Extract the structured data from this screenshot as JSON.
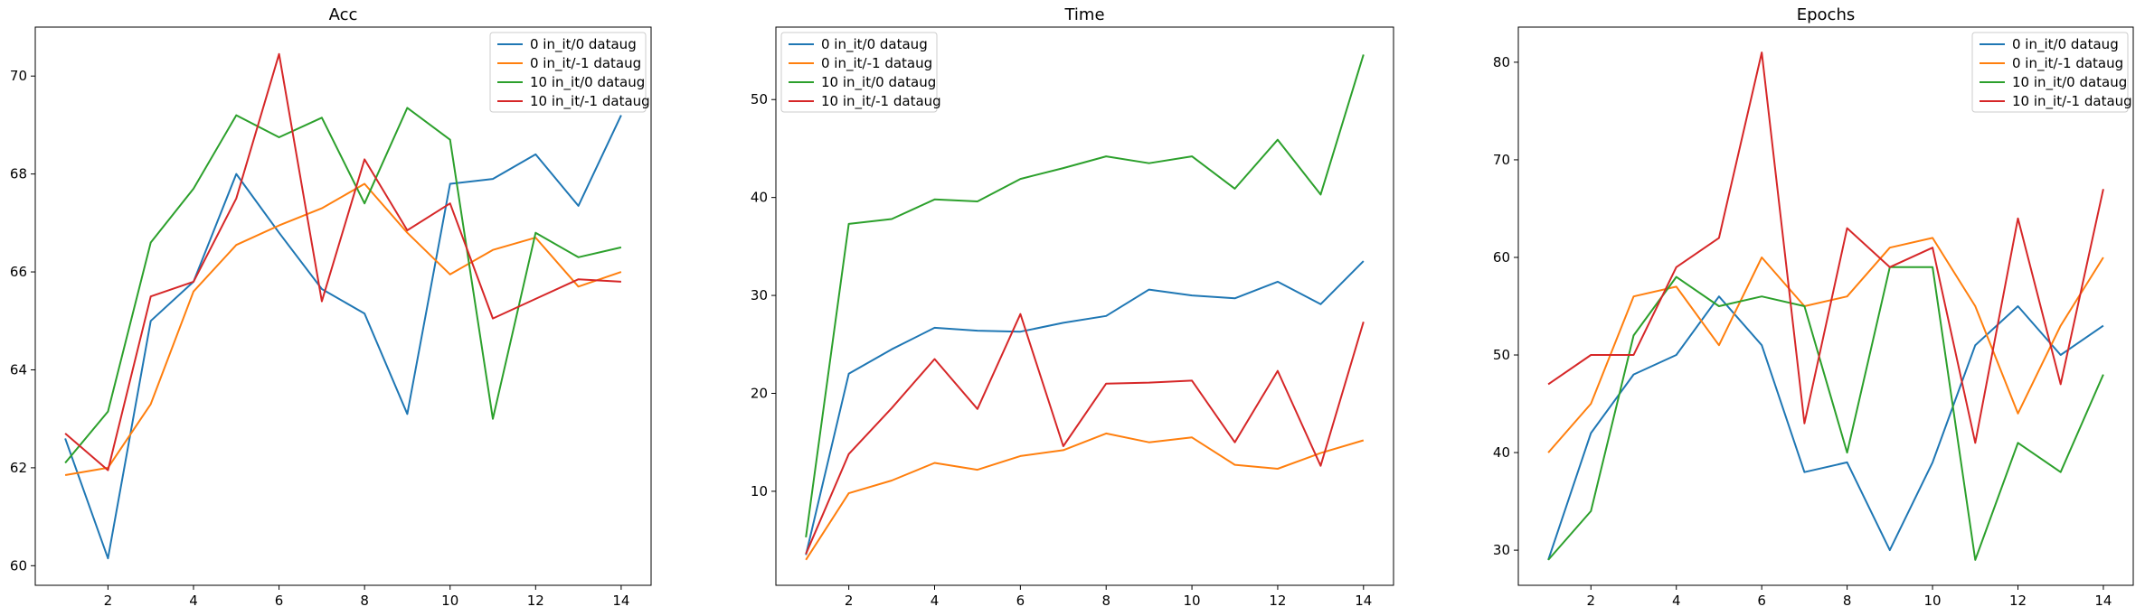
{
  "figure": {
    "title": ""
  },
  "chart_data": [
    {
      "type": "line",
      "title": "Acc",
      "xlabel": "",
      "ylabel": "",
      "xlim": [
        0.3,
        14.7
      ],
      "ylim": [
        59.6,
        71.0
      ],
      "xticks": [
        2,
        4,
        6,
        8,
        10,
        12,
        14
      ],
      "yticks": [
        60,
        62,
        64,
        66,
        68,
        70
      ],
      "legend_position": "top-right",
      "x": [
        1,
        2,
        3,
        4,
        5,
        6,
        7,
        8,
        9,
        10,
        11,
        12,
        13,
        14
      ],
      "series": [
        {
          "name": "0 in_it/0 dataug",
          "color": "#1f77b4",
          "values": [
            62.6,
            60.15,
            65.0,
            65.8,
            68.0,
            66.8,
            65.65,
            65.15,
            63.1,
            67.8,
            67.9,
            68.4,
            67.35,
            69.2
          ]
        },
        {
          "name": "0 in_it/-1 dataug",
          "color": "#ff7f0e",
          "values": [
            61.85,
            62.0,
            63.3,
            65.6,
            66.55,
            66.95,
            67.3,
            67.8,
            66.8,
            65.95,
            66.45,
            66.7,
            65.7,
            66.0
          ]
        },
        {
          "name": "10 in_it/0 dataug",
          "color": "#2ca02c",
          "values": [
            62.1,
            63.15,
            66.6,
            67.7,
            69.2,
            68.75,
            69.15,
            67.4,
            69.35,
            68.7,
            63.0,
            66.8,
            66.3,
            66.5
          ]
        },
        {
          "name": "10 in_it/-1 dataug",
          "color": "#d62728",
          "values": [
            62.7,
            61.95,
            65.5,
            65.8,
            67.5,
            70.45,
            65.4,
            68.3,
            66.85,
            67.4,
            65.05,
            65.45,
            65.85,
            65.8
          ]
        }
      ]
    },
    {
      "type": "line",
      "title": "Time",
      "xlabel": "",
      "ylabel": "",
      "xlim": [
        0.3,
        14.7
      ],
      "ylim": [
        0.4,
        57.4
      ],
      "xticks": [
        2,
        4,
        6,
        8,
        10,
        12,
        14
      ],
      "yticks": [
        10,
        20,
        30,
        40,
        50
      ],
      "legend_position": "top-left",
      "x": [
        1,
        2,
        3,
        4,
        5,
        6,
        7,
        8,
        9,
        10,
        11,
        12,
        13,
        14
      ],
      "series": [
        {
          "name": "0 in_it/0 dataug",
          "color": "#1f77b4",
          "values": [
            3.5,
            22.0,
            24.5,
            26.7,
            26.4,
            26.3,
            27.2,
            27.9,
            30.6,
            30.0,
            29.7,
            31.4,
            29.1,
            33.5
          ]
        },
        {
          "name": "0 in_it/-1 dataug",
          "color": "#ff7f0e",
          "values": [
            3.0,
            9.8,
            11.1,
            12.9,
            12.2,
            13.6,
            14.2,
            15.9,
            15.0,
            15.5,
            12.7,
            12.3,
            13.9,
            15.2
          ]
        },
        {
          "name": "10 in_it/0 dataug",
          "color": "#2ca02c",
          "values": [
            5.3,
            37.3,
            37.8,
            39.8,
            39.6,
            41.9,
            43.0,
            44.2,
            43.5,
            44.2,
            40.9,
            45.9,
            40.3,
            54.6
          ]
        },
        {
          "name": "10 in_it/-1 dataug",
          "color": "#d62728",
          "values": [
            3.6,
            13.8,
            18.5,
            23.5,
            18.4,
            28.1,
            14.6,
            21.0,
            21.1,
            21.3,
            15.0,
            22.3,
            12.6,
            27.3
          ]
        }
      ]
    },
    {
      "type": "line",
      "title": "Epochs",
      "xlabel": "",
      "ylabel": "",
      "xlim": [
        0.3,
        14.7
      ],
      "ylim": [
        26.4,
        83.6
      ],
      "xticks": [
        2,
        4,
        6,
        8,
        10,
        12,
        14
      ],
      "yticks": [
        30,
        40,
        50,
        60,
        70,
        80
      ],
      "legend_position": "top-right",
      "x": [
        1,
        2,
        3,
        4,
        5,
        6,
        7,
        8,
        9,
        10,
        11,
        12,
        13,
        14
      ],
      "series": [
        {
          "name": "0 in_it/0 dataug",
          "color": "#1f77b4",
          "values": [
            29,
            42,
            48,
            50,
            56,
            51,
            38,
            39,
            30,
            39,
            51,
            55,
            50,
            53
          ]
        },
        {
          "name": "0 in_it/-1 dataug",
          "color": "#ff7f0e",
          "values": [
            40,
            45,
            56,
            57,
            51,
            60,
            55,
            56,
            61,
            62,
            55,
            44,
            53,
            60
          ]
        },
        {
          "name": "10 in_it/0 dataug",
          "color": "#2ca02c",
          "values": [
            29,
            34,
            52,
            58,
            55,
            56,
            55,
            40,
            59,
            59,
            29,
            41,
            38,
            48
          ]
        },
        {
          "name": "10 in_it/-1 dataug",
          "color": "#d62728",
          "values": [
            47,
            50,
            50,
            59,
            62,
            81,
            43,
            63,
            59,
            61,
            41,
            64,
            47,
            67
          ]
        }
      ]
    }
  ]
}
